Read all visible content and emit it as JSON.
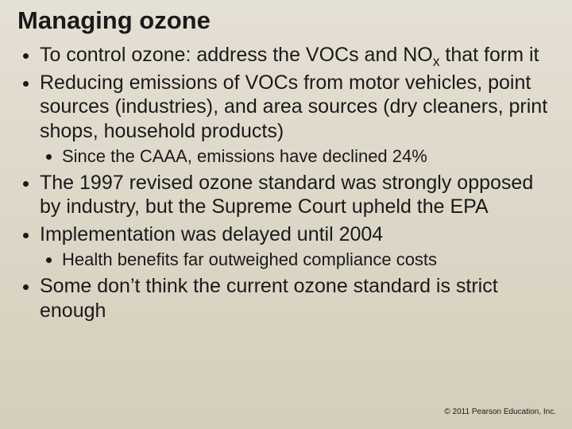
{
  "slide": {
    "title": "Managing ozone",
    "title_fontsize": 31,
    "title_weight": "bold",
    "body_fontsize": 25,
    "sub_fontsize": 22,
    "line_height": 1.22,
    "text_color": "#1a1a1a",
    "background_gradient_top": "#e5e0d4",
    "background_gradient_mid": "#ddd7c8",
    "background_gradient_bottom": "#d5cebb",
    "bullets": [
      {
        "text_pre": "To control ozone: address the VOCs and NO",
        "sub": "x",
        "text_post": " that form it",
        "children": []
      },
      {
        "text_pre": "Reducing emissions of VOCs from motor vehicles, point sources (industries), and area sources (dry cleaners, print shops, household products)",
        "sub": "",
        "text_post": "",
        "children": [
          {
            "text": "Since the CAAA, emissions have declined 24%"
          }
        ]
      },
      {
        "text_pre": "The 1997 revised ozone standard was strongly opposed by industry, but the Supreme Court upheld the EPA",
        "sub": "",
        "text_post": "",
        "children": []
      },
      {
        "text_pre": "Implementation was delayed until 2004",
        "sub": "",
        "text_post": "",
        "children": [
          {
            "text": "Health benefits far outweighed compliance costs"
          }
        ]
      },
      {
        "text_pre": "Some don’t think the current ozone standard is strict enough",
        "sub": "",
        "text_post": "",
        "children": []
      }
    ],
    "copyright": "© 2011 Pearson Education, Inc.",
    "copyright_fontsize": 10
  }
}
